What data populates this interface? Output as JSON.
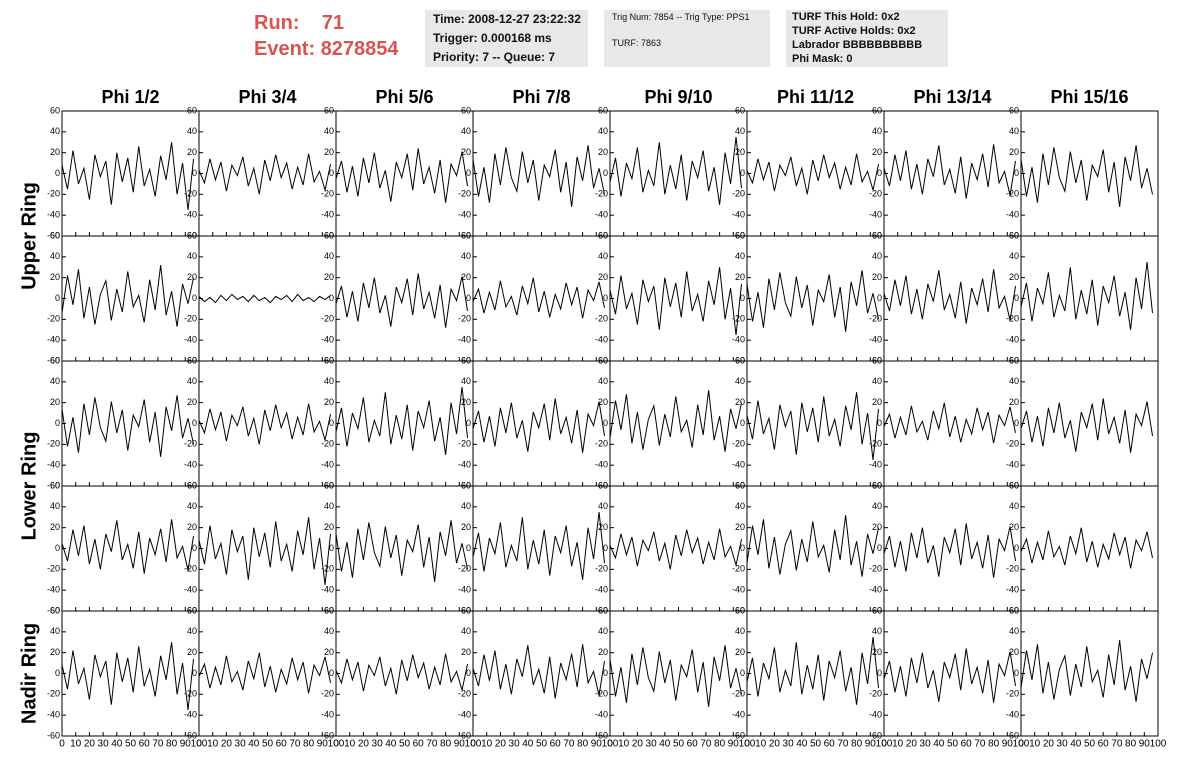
{
  "header": {
    "run_label": "Run:",
    "run": "71",
    "event_label": "Event:",
    "event": "8278854",
    "info1": [
      "Time: 2008-12-27 23:22:32",
      "Trigger: 0.000168 ms",
      "Priority: 7 -- Queue: 7"
    ],
    "info2": [
      "Trig Num: 7854 -- Trig Type: PPS1",
      "TURF: 7863"
    ],
    "info3": [
      "TURF This Hold: 0x2",
      "TURF Active Holds: 0x2",
      "Labrador BBBBBBBBBB",
      "Phi Mask: 0"
    ]
  },
  "chart_data": {
    "type": "line",
    "color": "#000000",
    "columns": [
      "Phi 1/2",
      "Phi 3/4",
      "Phi 5/6",
      "Phi 7/8",
      "Phi 9/10",
      "Phi 11/12",
      "Phi 13/14",
      "Phi 15/16"
    ],
    "row_labels": [
      "Upper Ring",
      "Lower Ring",
      "Nadir Ring"
    ],
    "xlim": [
      0,
      100
    ],
    "xticks": [
      0,
      10,
      20,
      30,
      40,
      50,
      60,
      70,
      80,
      90,
      100
    ],
    "ylim": [
      -60,
      60
    ],
    "yticks": [
      -60,
      -40,
      -20,
      0,
      20,
      40,
      60
    ],
    "x": [
      0,
      4,
      8,
      12,
      16,
      20,
      24,
      28,
      32,
      36,
      40,
      44,
      48,
      52,
      56,
      60,
      64,
      68,
      72,
      76,
      80,
      84,
      88,
      92,
      96
    ],
    "panels": [
      [
        [
          8,
          -15,
          22,
          -10,
          5,
          -25,
          18,
          -3,
          12,
          -30,
          20,
          -8,
          15,
          -18,
          26,
          -12,
          4,
          -22,
          17,
          -6,
          30,
          -20,
          10,
          -35,
          14
        ],
        [
          3,
          -9,
          14,
          -6,
          11,
          -17,
          8,
          -2,
          16,
          -12,
          5,
          -20,
          13,
          -7,
          18,
          -4,
          10,
          -15,
          6,
          -11,
          19,
          -8,
          2,
          -16,
          9
        ],
        [
          -5,
          12,
          -18,
          7,
          -22,
          15,
          -9,
          20,
          -14,
          3,
          -27,
          11,
          -4,
          19,
          -16,
          24,
          -10,
          6,
          -19,
          13,
          -28,
          9,
          -2,
          21,
          -12
        ],
        [
          14,
          -22,
          6,
          -28,
          19,
          -11,
          25,
          -4,
          -17,
          21,
          -9,
          13,
          -26,
          8,
          -3,
          23,
          -18,
          11,
          -32,
          16,
          -7,
          27,
          -14,
          5,
          -20
        ],
        [
          -8,
          15,
          -22,
          10,
          -5,
          25,
          -18,
          3,
          -12,
          30,
          -20,
          8,
          -15,
          18,
          -26,
          12,
          -4,
          22,
          -17,
          6,
          -30,
          20,
          -10,
          35,
          -14
        ],
        [
          3,
          -9,
          14,
          -6,
          11,
          -17,
          8,
          -2,
          16,
          -12,
          5,
          -20,
          13,
          -7,
          18,
          -4,
          10,
          -15,
          6,
          -11,
          19,
          -8,
          2,
          -16,
          9
        ],
        [
          5,
          -12,
          18,
          -7,
          22,
          -15,
          9,
          -20,
          14,
          -3,
          27,
          -11,
          4,
          -19,
          16,
          -24,
          10,
          -6,
          19,
          -13,
          28,
          -9,
          2,
          -21,
          12
        ],
        [
          14,
          -22,
          6,
          -28,
          19,
          -11,
          25,
          -4,
          -17,
          21,
          -9,
          13,
          -26,
          8,
          -3,
          23,
          -18,
          11,
          -32,
          16,
          -7,
          27,
          -14,
          5,
          -20
        ]
      ],
      [
        [
          -14,
          22,
          -6,
          28,
          -19,
          11,
          -25,
          4,
          17,
          -21,
          9,
          -13,
          26,
          -8,
          3,
          -23,
          18,
          -11,
          32,
          -16,
          7,
          -27,
          14,
          -5,
          20
        ],
        [
          2,
          -3,
          1,
          -4,
          3,
          -2,
          4,
          -1,
          2,
          -3,
          3,
          -2,
          1,
          -4,
          2,
          -1,
          3,
          -3,
          4,
          -2,
          1,
          -3,
          2,
          -1,
          3
        ],
        [
          -5,
          12,
          -18,
          7,
          -22,
          15,
          -9,
          20,
          -14,
          3,
          -27,
          11,
          -4,
          19,
          -16,
          24,
          -10,
          6,
          -19,
          13,
          -28,
          9,
          -2,
          21,
          -12
        ],
        [
          -3,
          9,
          -14,
          6,
          -11,
          17,
          -8,
          2,
          -16,
          12,
          -5,
          20,
          -13,
          7,
          -18,
          4,
          -10,
          15,
          -6,
          11,
          -19,
          8,
          -2,
          16,
          -9
        ],
        [
          8,
          -15,
          22,
          -10,
          5,
          -25,
          18,
          -3,
          12,
          -30,
          20,
          -8,
          15,
          -18,
          26,
          -12,
          4,
          -22,
          17,
          -6,
          30,
          -20,
          10,
          -35,
          14
        ],
        [
          14,
          -22,
          6,
          -28,
          19,
          -11,
          25,
          -4,
          -17,
          21,
          -9,
          13,
          -26,
          8,
          -3,
          23,
          -18,
          11,
          -32,
          16,
          -7,
          27,
          -14,
          5,
          -20
        ],
        [
          5,
          -12,
          18,
          -7,
          22,
          -15,
          9,
          -20,
          14,
          -3,
          27,
          -11,
          4,
          -19,
          16,
          -24,
          10,
          -6,
          19,
          -13,
          28,
          -9,
          2,
          -21,
          12
        ],
        [
          -8,
          15,
          -22,
          10,
          -5,
          25,
          -18,
          3,
          -12,
          30,
          -20,
          8,
          -15,
          18,
          -26,
          12,
          -4,
          22,
          -17,
          6,
          -30,
          20,
          -10,
          35,
          -14
        ]
      ],
      [
        [
          14,
          -22,
          6,
          -28,
          19,
          -11,
          25,
          -4,
          -17,
          21,
          -9,
          13,
          -26,
          8,
          -3,
          23,
          -18,
          11,
          -32,
          16,
          -7,
          27,
          -14,
          5,
          -20
        ],
        [
          3,
          -9,
          14,
          -6,
          11,
          -17,
          8,
          -2,
          16,
          -12,
          5,
          -20,
          13,
          -7,
          18,
          -4,
          10,
          -15,
          6,
          -11,
          19,
          -8,
          2,
          -16,
          9
        ],
        [
          -8,
          15,
          -22,
          10,
          -5,
          25,
          -18,
          3,
          -12,
          30,
          -20,
          8,
          -15,
          18,
          -26,
          12,
          -4,
          22,
          -17,
          6,
          -30,
          20,
          -10,
          35,
          -14
        ],
        [
          -5,
          12,
          -18,
          7,
          -22,
          15,
          -9,
          20,
          -14,
          3,
          -27,
          11,
          -4,
          19,
          -16,
          24,
          -10,
          6,
          -19,
          13,
          -28,
          9,
          -2,
          21,
          -12
        ],
        [
          -14,
          22,
          -6,
          28,
          -19,
          11,
          -25,
          4,
          17,
          -21,
          9,
          -13,
          26,
          -8,
          3,
          -23,
          18,
          -11,
          32,
          -16,
          7,
          -27,
          14,
          -5,
          20
        ],
        [
          8,
          -15,
          22,
          -10,
          5,
          -25,
          18,
          -3,
          12,
          -30,
          20,
          -8,
          15,
          -18,
          26,
          -12,
          4,
          -22,
          17,
          -6,
          30,
          -20,
          10,
          -35,
          14
        ],
        [
          -3,
          9,
          -14,
          6,
          -11,
          17,
          -8,
          2,
          -16,
          12,
          -5,
          20,
          -13,
          7,
          -18,
          4,
          -10,
          15,
          -6,
          11,
          -19,
          8,
          -2,
          16,
          -9
        ],
        [
          -5,
          12,
          -18,
          7,
          -22,
          15,
          -9,
          20,
          -14,
          3,
          -27,
          11,
          -4,
          19,
          -16,
          24,
          -10,
          6,
          -19,
          13,
          -28,
          9,
          -2,
          21,
          -12
        ]
      ],
      [
        [
          5,
          -12,
          18,
          -7,
          22,
          -15,
          9,
          -20,
          14,
          -3,
          27,
          -11,
          4,
          -19,
          16,
          -24,
          10,
          -6,
          19,
          -13,
          28,
          -9,
          2,
          -21,
          12
        ],
        [
          8,
          -15,
          22,
          -10,
          5,
          -25,
          18,
          -3,
          12,
          -30,
          20,
          -8,
          15,
          -18,
          26,
          -12,
          4,
          -22,
          17,
          -6,
          30,
          -20,
          10,
          -35,
          14
        ],
        [
          14,
          -22,
          6,
          -28,
          19,
          -11,
          25,
          -4,
          -17,
          21,
          -9,
          13,
          -26,
          8,
          -3,
          23,
          -18,
          11,
          -32,
          16,
          -7,
          27,
          -14,
          5,
          -20
        ],
        [
          -8,
          15,
          -22,
          10,
          -5,
          25,
          -18,
          3,
          -12,
          30,
          -20,
          8,
          -15,
          18,
          -26,
          12,
          -4,
          22,
          -17,
          6,
          -30,
          20,
          -10,
          35,
          -14
        ],
        [
          3,
          -9,
          14,
          -6,
          11,
          -17,
          8,
          -2,
          16,
          -12,
          5,
          -20,
          13,
          -7,
          18,
          -4,
          10,
          -15,
          6,
          -11,
          19,
          -8,
          2,
          -16,
          9
        ],
        [
          -14,
          22,
          -6,
          28,
          -19,
          11,
          -25,
          4,
          17,
          -21,
          9,
          -13,
          26,
          -8,
          3,
          -23,
          18,
          -11,
          32,
          -16,
          7,
          -27,
          14,
          -5,
          20
        ],
        [
          -5,
          12,
          -18,
          7,
          -22,
          15,
          -9,
          20,
          -14,
          3,
          -27,
          11,
          -4,
          19,
          -16,
          24,
          -10,
          6,
          -19,
          13,
          -28,
          9,
          -2,
          21,
          -12
        ],
        [
          -3,
          9,
          -14,
          6,
          -11,
          17,
          -8,
          2,
          -16,
          12,
          -5,
          20,
          -13,
          7,
          -18,
          4,
          -10,
          15,
          -6,
          11,
          -19,
          8,
          -2,
          16,
          -9
        ]
      ],
      [
        [
          8,
          -15,
          22,
          -10,
          5,
          -25,
          18,
          -3,
          12,
          -30,
          20,
          -8,
          15,
          -18,
          26,
          -12,
          4,
          -22,
          17,
          -6,
          30,
          -20,
          10,
          -35,
          14
        ],
        [
          -3,
          9,
          -14,
          6,
          -11,
          17,
          -8,
          2,
          -16,
          12,
          -5,
          20,
          -13,
          7,
          -18,
          4,
          -10,
          15,
          -6,
          11,
          -19,
          8,
          -2,
          16,
          -9
        ],
        [
          3,
          -9,
          14,
          -6,
          11,
          -17,
          8,
          -2,
          16,
          -12,
          5,
          -20,
          13,
          -7,
          18,
          -4,
          10,
          -15,
          6,
          -11,
          19,
          -8,
          2,
          -16,
          9
        ],
        [
          5,
          -12,
          18,
          -7,
          22,
          -15,
          9,
          -20,
          14,
          -3,
          27,
          -11,
          4,
          -19,
          16,
          -24,
          10,
          -6,
          19,
          -13,
          28,
          -9,
          2,
          -21,
          12
        ],
        [
          14,
          -22,
          6,
          -28,
          19,
          -11,
          25,
          -4,
          -17,
          21,
          -9,
          13,
          -26,
          8,
          -3,
          23,
          -18,
          11,
          -32,
          16,
          -7,
          27,
          -14,
          5,
          -20
        ],
        [
          -8,
          15,
          -22,
          10,
          -5,
          25,
          -18,
          3,
          -12,
          30,
          -20,
          8,
          -15,
          18,
          -26,
          12,
          -4,
          22,
          -17,
          6,
          -30,
          20,
          -10,
          35,
          -14
        ],
        [
          -5,
          12,
          -18,
          7,
          -22,
          15,
          -9,
          20,
          -14,
          3,
          -27,
          11,
          -4,
          19,
          -16,
          24,
          -10,
          6,
          -19,
          13,
          -28,
          9,
          -2,
          21,
          -12
        ],
        [
          -14,
          22,
          -6,
          28,
          -19,
          11,
          -25,
          4,
          17,
          -21,
          9,
          -13,
          26,
          -8,
          3,
          -23,
          18,
          -11,
          32,
          -16,
          7,
          -27,
          14,
          -5,
          20
        ]
      ]
    ]
  }
}
